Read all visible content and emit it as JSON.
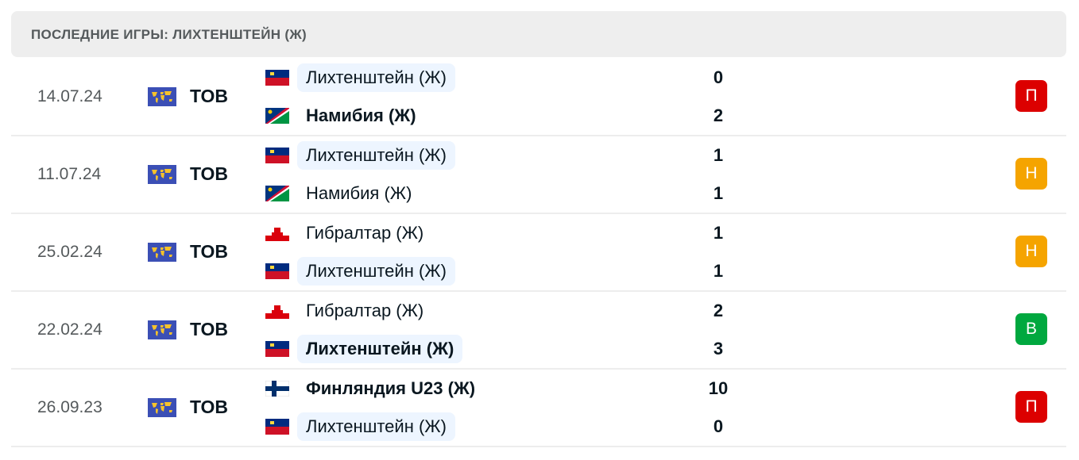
{
  "header": {
    "title": "ПОСЛЕДНИЕ ИГРЫ: ЛИХТЕНШТЕЙН (Ж)"
  },
  "colors": {
    "loss": "#dc0000",
    "draw": "#f5a400",
    "win": "#00a83f",
    "highlight": "#edf5ff"
  },
  "matches": [
    {
      "date": "14.07.24",
      "competition": "ТОВ",
      "competition_icon": "world-map-icon",
      "home": {
        "name": "Лихтенштейн (Ж)",
        "flag": "liechtenstein",
        "score": "0",
        "bold": false,
        "highlight": true
      },
      "away": {
        "name": "Намибия (Ж)",
        "flag": "namibia",
        "score": "2",
        "bold": true,
        "highlight": false
      },
      "result": "П",
      "result_type": "loss"
    },
    {
      "date": "11.07.24",
      "competition": "ТОВ",
      "competition_icon": "world-map-icon",
      "home": {
        "name": "Лихтенштейн (Ж)",
        "flag": "liechtenstein",
        "score": "1",
        "bold": false,
        "highlight": true
      },
      "away": {
        "name": "Намибия (Ж)",
        "flag": "namibia",
        "score": "1",
        "bold": false,
        "highlight": false
      },
      "result": "Н",
      "result_type": "draw"
    },
    {
      "date": "25.02.24",
      "competition": "ТОВ",
      "competition_icon": "world-map-icon",
      "home": {
        "name": "Гибралтар (Ж)",
        "flag": "gibraltar",
        "score": "1",
        "bold": false,
        "highlight": false
      },
      "away": {
        "name": "Лихтенштейн (Ж)",
        "flag": "liechtenstein",
        "score": "1",
        "bold": false,
        "highlight": true
      },
      "result": "Н",
      "result_type": "draw"
    },
    {
      "date": "22.02.24",
      "competition": "ТОВ",
      "competition_icon": "world-map-icon",
      "home": {
        "name": "Гибралтар (Ж)",
        "flag": "gibraltar",
        "score": "2",
        "bold": false,
        "highlight": false
      },
      "away": {
        "name": "Лихтенштейн (Ж)",
        "flag": "liechtenstein",
        "score": "3",
        "bold": true,
        "highlight": true
      },
      "result": "В",
      "result_type": "win"
    },
    {
      "date": "26.09.23",
      "competition": "ТОВ",
      "competition_icon": "world-map-icon",
      "home": {
        "name": "Финляндия U23 (Ж)",
        "flag": "finland",
        "score": "10",
        "bold": true,
        "highlight": false
      },
      "away": {
        "name": "Лихтенштейн (Ж)",
        "flag": "liechtenstein",
        "score": "0",
        "bold": false,
        "highlight": true
      },
      "result": "П",
      "result_type": "loss"
    }
  ]
}
